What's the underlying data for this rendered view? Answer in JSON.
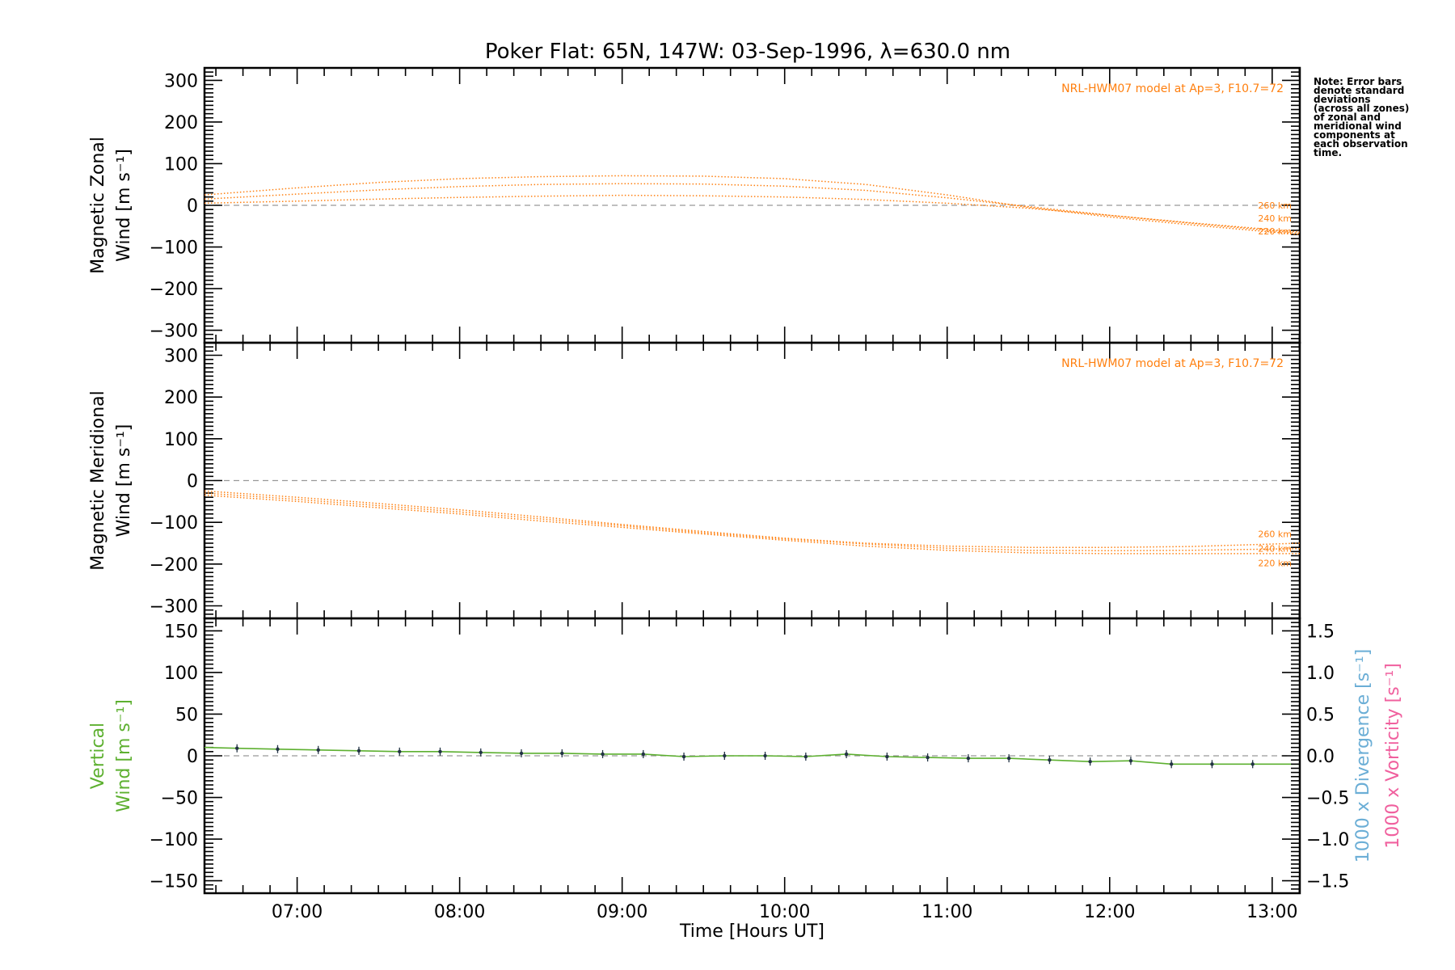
{
  "title": "Poker Flat: 65N, 147W: 03-Sep-1996, λ=630.0 nm",
  "note": [
    "Note: Error bars",
    "denote standard",
    "deviations",
    "(across all zones)",
    "of zonal and",
    "meridional wind",
    "components at",
    "each observation",
    "time."
  ],
  "colors": {
    "model": "#ff7f0e",
    "vertical": "#5db030",
    "divergence": "#6baed6",
    "vorticity": "#f0609e",
    "zero_line": "#999999",
    "points": "#223344"
  },
  "chart_data": [
    {
      "type": "line",
      "ylabel": [
        "Magnetic Zonal",
        "Wind [m s⁻¹]"
      ],
      "ylim": [
        -330,
        330
      ],
      "yticks": [
        -300,
        -200,
        -100,
        0,
        100,
        200,
        300
      ],
      "xlim": [
        6.43,
        13.17
      ],
      "model_label": "NRL-HWM07 model at Ap=3, F10.7=72",
      "series": [
        {
          "name": "260 km",
          "x": [
            6.43,
            7.0,
            7.5,
            8.0,
            8.5,
            9.0,
            9.5,
            10.0,
            10.5,
            11.0,
            11.5,
            12.0,
            12.5,
            13.17
          ],
          "values": [
            25,
            42,
            55,
            64,
            69,
            71,
            70,
            64,
            50,
            25,
            -5,
            -28,
            -47,
            -70
          ]
        },
        {
          "name": "240 km",
          "x": [
            6.43,
            7.0,
            7.5,
            8.0,
            8.5,
            9.0,
            9.5,
            10.0,
            10.5,
            11.0,
            11.5,
            12.0,
            12.5,
            13.17
          ],
          "values": [
            15,
            27,
            37,
            45,
            50,
            52,
            51,
            46,
            36,
            18,
            -3,
            -24,
            -43,
            -67
          ]
        },
        {
          "name": "220 km",
          "x": [
            6.43,
            7.0,
            7.5,
            8.0,
            8.5,
            9.0,
            9.5,
            10.0,
            10.5,
            11.0,
            11.5,
            12.0,
            12.5,
            13.17
          ],
          "values": [
            5,
            10,
            15,
            19,
            22,
            24,
            23,
            20,
            14,
            5,
            -7,
            -24,
            -42,
            -64
          ]
        }
      ]
    },
    {
      "type": "line",
      "ylabel": [
        "Magnetic Meridional",
        "Wind [m s⁻¹]"
      ],
      "ylim": [
        -330,
        330
      ],
      "yticks": [
        -300,
        -200,
        -100,
        0,
        100,
        200,
        300
      ],
      "xlim": [
        6.43,
        13.17
      ],
      "model_label": "NRL-HWM07 model at Ap=3, F10.7=72",
      "series": [
        {
          "name": "260 km",
          "x": [
            6.43,
            7.0,
            7.5,
            8.0,
            8.5,
            9.0,
            9.5,
            10.0,
            10.5,
            11.0,
            11.5,
            12.0,
            12.5,
            13.17
          ],
          "values": [
            -25,
            -40,
            -55,
            -70,
            -87,
            -105,
            -122,
            -138,
            -150,
            -157,
            -160,
            -160,
            -158,
            -150
          ]
        },
        {
          "name": "240 km",
          "x": [
            6.43,
            7.0,
            7.5,
            8.0,
            8.5,
            9.0,
            9.5,
            10.0,
            10.5,
            11.0,
            11.5,
            12.0,
            12.5,
            13.17
          ],
          "values": [
            -30,
            -45,
            -60,
            -75,
            -92,
            -108,
            -125,
            -140,
            -152,
            -162,
            -167,
            -168,
            -167,
            -163
          ]
        },
        {
          "name": "220 km",
          "x": [
            6.43,
            7.0,
            7.5,
            8.0,
            8.5,
            9.0,
            9.5,
            10.0,
            10.5,
            11.0,
            11.5,
            12.0,
            12.5,
            13.17
          ],
          "values": [
            -35,
            -50,
            -65,
            -80,
            -97,
            -112,
            -128,
            -143,
            -157,
            -167,
            -173,
            -175,
            -175,
            -175
          ]
        }
      ]
    },
    {
      "type": "line",
      "ylabel": [
        "Vertical",
        "Wind [m s⁻¹]"
      ],
      "ylim": [
        -165,
        165
      ],
      "yticks": [
        -150,
        -100,
        -50,
        0,
        50,
        100,
        150
      ],
      "y2lim": [
        -1.65,
        1.65
      ],
      "y2ticks": [
        -1.5,
        -1.0,
        -0.5,
        0.0,
        0.5,
        1.0,
        1.5
      ],
      "y2label_divergence": "1000 x Divergence [s⁻¹]",
      "y2label_vorticity": "1000 x Vorticity [s⁻¹]",
      "xlim": [
        6.43,
        13.17
      ],
      "xticks": [
        "07:00",
        "08:00",
        "09:00",
        "10:00",
        "11:00",
        "12:00",
        "13:00"
      ],
      "xtick_values": [
        7,
        8,
        9,
        10,
        11,
        12,
        13
      ],
      "xlabel": "Time [Hours UT]",
      "series": [
        {
          "name": "Vertical wind",
          "x": [
            6.43,
            6.63,
            6.88,
            7.13,
            7.38,
            7.63,
            7.88,
            8.13,
            8.38,
            8.63,
            8.88,
            9.13,
            9.38,
            9.63,
            9.88,
            10.13,
            10.38,
            10.63,
            10.88,
            11.13,
            11.38,
            11.63,
            11.88,
            12.13,
            12.38,
            12.63,
            12.88,
            13.17
          ],
          "values": [
            10,
            9,
            8,
            7,
            6,
            5,
            5,
            4,
            3,
            3,
            2,
            2,
            -1,
            0,
            0,
            -1,
            2,
            -1,
            -2,
            -3,
            -3,
            -5,
            -7,
            -6,
            -10,
            -10,
            -10,
            -10
          ]
        }
      ]
    }
  ]
}
